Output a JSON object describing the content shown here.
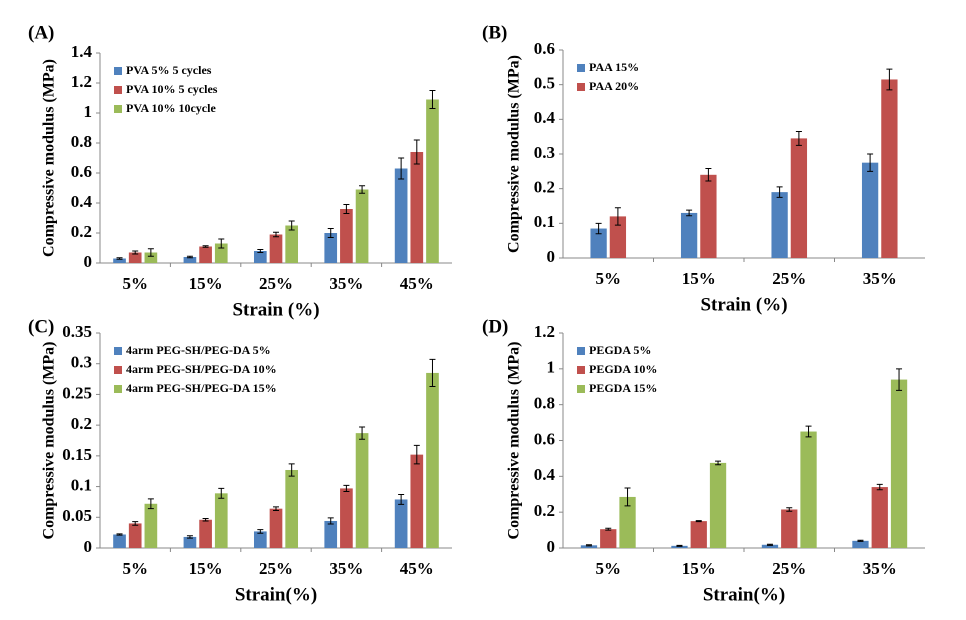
{
  "chart_data": [
    {
      "type": "bar",
      "panel_label": "(A)",
      "xlabel": "Strain (%)",
      "ylabel": "Compressive modulus (MPa)",
      "categories": [
        "5%",
        "15%",
        "25%",
        "35%",
        "45%"
      ],
      "series": [
        {
          "name": "PVA 5% 5 cycles",
          "color": "#4f81bd",
          "values": [
            0.03,
            0.04,
            0.08,
            0.2,
            0.63
          ],
          "errors": [
            0.005,
            0.005,
            0.01,
            0.03,
            0.07
          ]
        },
        {
          "name": "PVA 10% 5 cycles",
          "color": "#c0504d",
          "values": [
            0.07,
            0.11,
            0.19,
            0.36,
            0.74
          ],
          "errors": [
            0.01,
            0.005,
            0.015,
            0.03,
            0.08
          ]
        },
        {
          "name": "PVA 10% 10cycle",
          "color": "#9bbb59",
          "values": [
            0.07,
            0.13,
            0.25,
            0.49,
            1.09
          ],
          "errors": [
            0.025,
            0.03,
            0.03,
            0.025,
            0.06
          ]
        }
      ],
      "ylim": [
        0,
        1.4
      ],
      "yticks": [
        0,
        0.2,
        0.4,
        0.6,
        0.8,
        1,
        1.2,
        1.4
      ],
      "legend": "upper left"
    },
    {
      "type": "bar",
      "panel_label": "(B)",
      "xlabel": "Strain  (%)",
      "ylabel": "Compressive modulus (MPa)",
      "categories": [
        "5%",
        "15%",
        "25%",
        "35%"
      ],
      "series": [
        {
          "name": "PAA 15%",
          "color": "#4f81bd",
          "values": [
            0.085,
            0.13,
            0.19,
            0.275
          ],
          "errors": [
            0.015,
            0.008,
            0.015,
            0.025
          ]
        },
        {
          "name": "PAA 20%",
          "color": "#c0504d",
          "values": [
            0.12,
            0.24,
            0.345,
            0.515
          ],
          "errors": [
            0.025,
            0.018,
            0.02,
            0.03
          ]
        }
      ],
      "ylim": [
        0,
        0.6
      ],
      "yticks": [
        0,
        0.1,
        0.2,
        0.3,
        0.4,
        0.5,
        0.6
      ],
      "legend": "upper left"
    },
    {
      "type": "bar",
      "panel_label": "(C)",
      "xlabel": "Strain(%)",
      "ylabel": "Compressive modulus (MPa)",
      "categories": [
        "5%",
        "15%",
        "25%",
        "35%",
        "45%"
      ],
      "series": [
        {
          "name": "4arm PEG-SH/PEG-DA 5%",
          "color": "#4f81bd",
          "values": [
            0.022,
            0.018,
            0.027,
            0.044,
            0.079
          ],
          "errors": [
            0.001,
            0.002,
            0.003,
            0.005,
            0.008
          ]
        },
        {
          "name": "4arm PEG-SH/PEG-DA 10%",
          "color": "#c0504d",
          "values": [
            0.04,
            0.046,
            0.064,
            0.097,
            0.152
          ],
          "errors": [
            0.003,
            0.002,
            0.003,
            0.005,
            0.015
          ]
        },
        {
          "name": "4arm PEG-SH/PEG-DA 15%",
          "color": "#9bbb59",
          "values": [
            0.072,
            0.089,
            0.127,
            0.187,
            0.285
          ],
          "errors": [
            0.008,
            0.008,
            0.01,
            0.01,
            0.022
          ]
        }
      ],
      "ylim": [
        0,
        0.35
      ],
      "yticks": [
        0,
        0.05,
        0.1,
        0.15,
        0.2,
        0.25,
        0.3,
        0.35
      ],
      "legend": "upper left"
    },
    {
      "type": "bar",
      "panel_label": "(D)",
      "xlabel": "Strain(%)",
      "ylabel": "Compressive modulus (MPa)",
      "categories": [
        "5%",
        "15%",
        "25%",
        "35%"
      ],
      "series": [
        {
          "name": "PEGDA 5%",
          "color": "#4f81bd",
          "values": [
            0.015,
            0.012,
            0.018,
            0.04
          ],
          "errors": [
            0.003,
            0.003,
            0.003,
            0.003
          ]
        },
        {
          "name": "PEGDA 10%",
          "color": "#c0504d",
          "values": [
            0.105,
            0.15,
            0.215,
            0.34
          ],
          "errors": [
            0.005,
            0.003,
            0.01,
            0.015
          ]
        },
        {
          "name": "PEGDA 15%",
          "color": "#9bbb59",
          "values": [
            0.285,
            0.475,
            0.65,
            0.94
          ],
          "errors": [
            0.05,
            0.01,
            0.03,
            0.06
          ]
        }
      ],
      "ylim": [
        0,
        1.2
      ],
      "yticks": [
        0,
        0.2,
        0.4,
        0.6,
        0.8,
        1,
        1.2
      ],
      "legend": "upper left"
    }
  ]
}
